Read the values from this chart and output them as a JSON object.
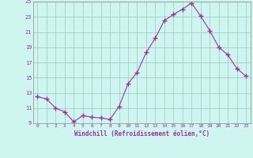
{
  "x": [
    0,
    1,
    2,
    3,
    4,
    5,
    6,
    7,
    8,
    9,
    10,
    11,
    12,
    13,
    14,
    15,
    16,
    17,
    18,
    19,
    20,
    21,
    22,
    23
  ],
  "y": [
    12.5,
    12.2,
    11.0,
    10.5,
    9.2,
    10.0,
    9.8,
    9.7,
    9.5,
    11.2,
    14.2,
    15.7,
    18.3,
    20.2,
    22.5,
    23.3,
    24.0,
    24.8,
    23.1,
    21.2,
    19.0,
    18.0,
    16.2,
    15.2
  ],
  "line_color": "#993399",
  "marker": "+",
  "marker_size": 4,
  "bg_color": "#cef5f0",
  "grid_color": "#aacccc",
  "xlabel": "Windchill (Refroidissement éolien,°C)",
  "xlabel_color": "#993399",
  "tick_color": "#993399",
  "ylim": [
    9,
    25
  ],
  "xlim": [
    -0.5,
    23.5
  ],
  "yticks": [
    9,
    11,
    13,
    15,
    17,
    19,
    21,
    23,
    25
  ],
  "xticks": [
    0,
    1,
    2,
    3,
    4,
    5,
    6,
    7,
    8,
    9,
    10,
    11,
    12,
    13,
    14,
    15,
    16,
    17,
    18,
    19,
    20,
    21,
    22,
    23
  ]
}
